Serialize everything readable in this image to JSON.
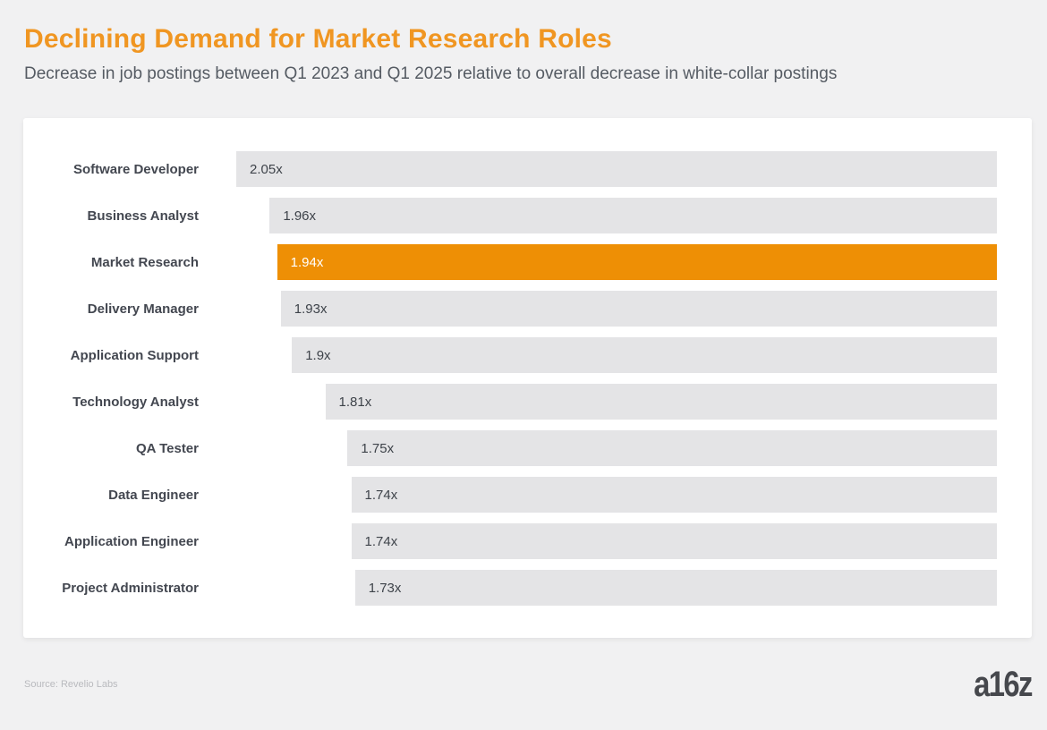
{
  "page": {
    "title": "Declining Demand for Market Research Roles",
    "subtitle": "Decrease in job postings between Q1 2023 and Q1 2025 relative to overall decrease in white-collar postings",
    "source": "Source: Revelio Labs",
    "logo": "a16z"
  },
  "colors": {
    "title": "#F09622",
    "subtitle_text": "#555B63",
    "page_bg": "#F1F1F2",
    "card_bg": "#FFFFFF",
    "bar_default": "#E4E4E6",
    "bar_highlight": "#EE8F05",
    "label_text": "#434750",
    "value_text": "#3E434A",
    "value_text_highlight": "#FFFFFF",
    "source_text": "#B9BABE",
    "logo_text": "#46484D"
  },
  "chart_data": {
    "type": "bar",
    "orientation": "horizontal-right-aligned",
    "title": "Declining Demand for Market Research Roles",
    "subtitle": "Decrease in job postings between Q1 2023 and Q1 2025 relative to overall decrease in white-collar postings",
    "categories": [
      "Software Developer",
      "Business Analyst",
      "Market Research",
      "Delivery Manager",
      "Application Support",
      "Technology Analyst",
      "QA Tester",
      "Data Engineer",
      "Application Engineer",
      "Project Administrator"
    ],
    "values": [
      2.05,
      1.96,
      1.94,
      1.93,
      1.9,
      1.81,
      1.75,
      1.74,
      1.74,
      1.73
    ],
    "value_labels": [
      "2.05x",
      "1.96x",
      "1.94x",
      "1.93x",
      "1.9x",
      "1.81x",
      "1.75x",
      "1.74x",
      "1.74x",
      "1.73x"
    ],
    "highlight_index": 2,
    "highlight_category": "Market Research",
    "xlim": [
      0,
      2.05
    ],
    "grid": false,
    "legend": false,
    "source": "Revelio Labs"
  }
}
